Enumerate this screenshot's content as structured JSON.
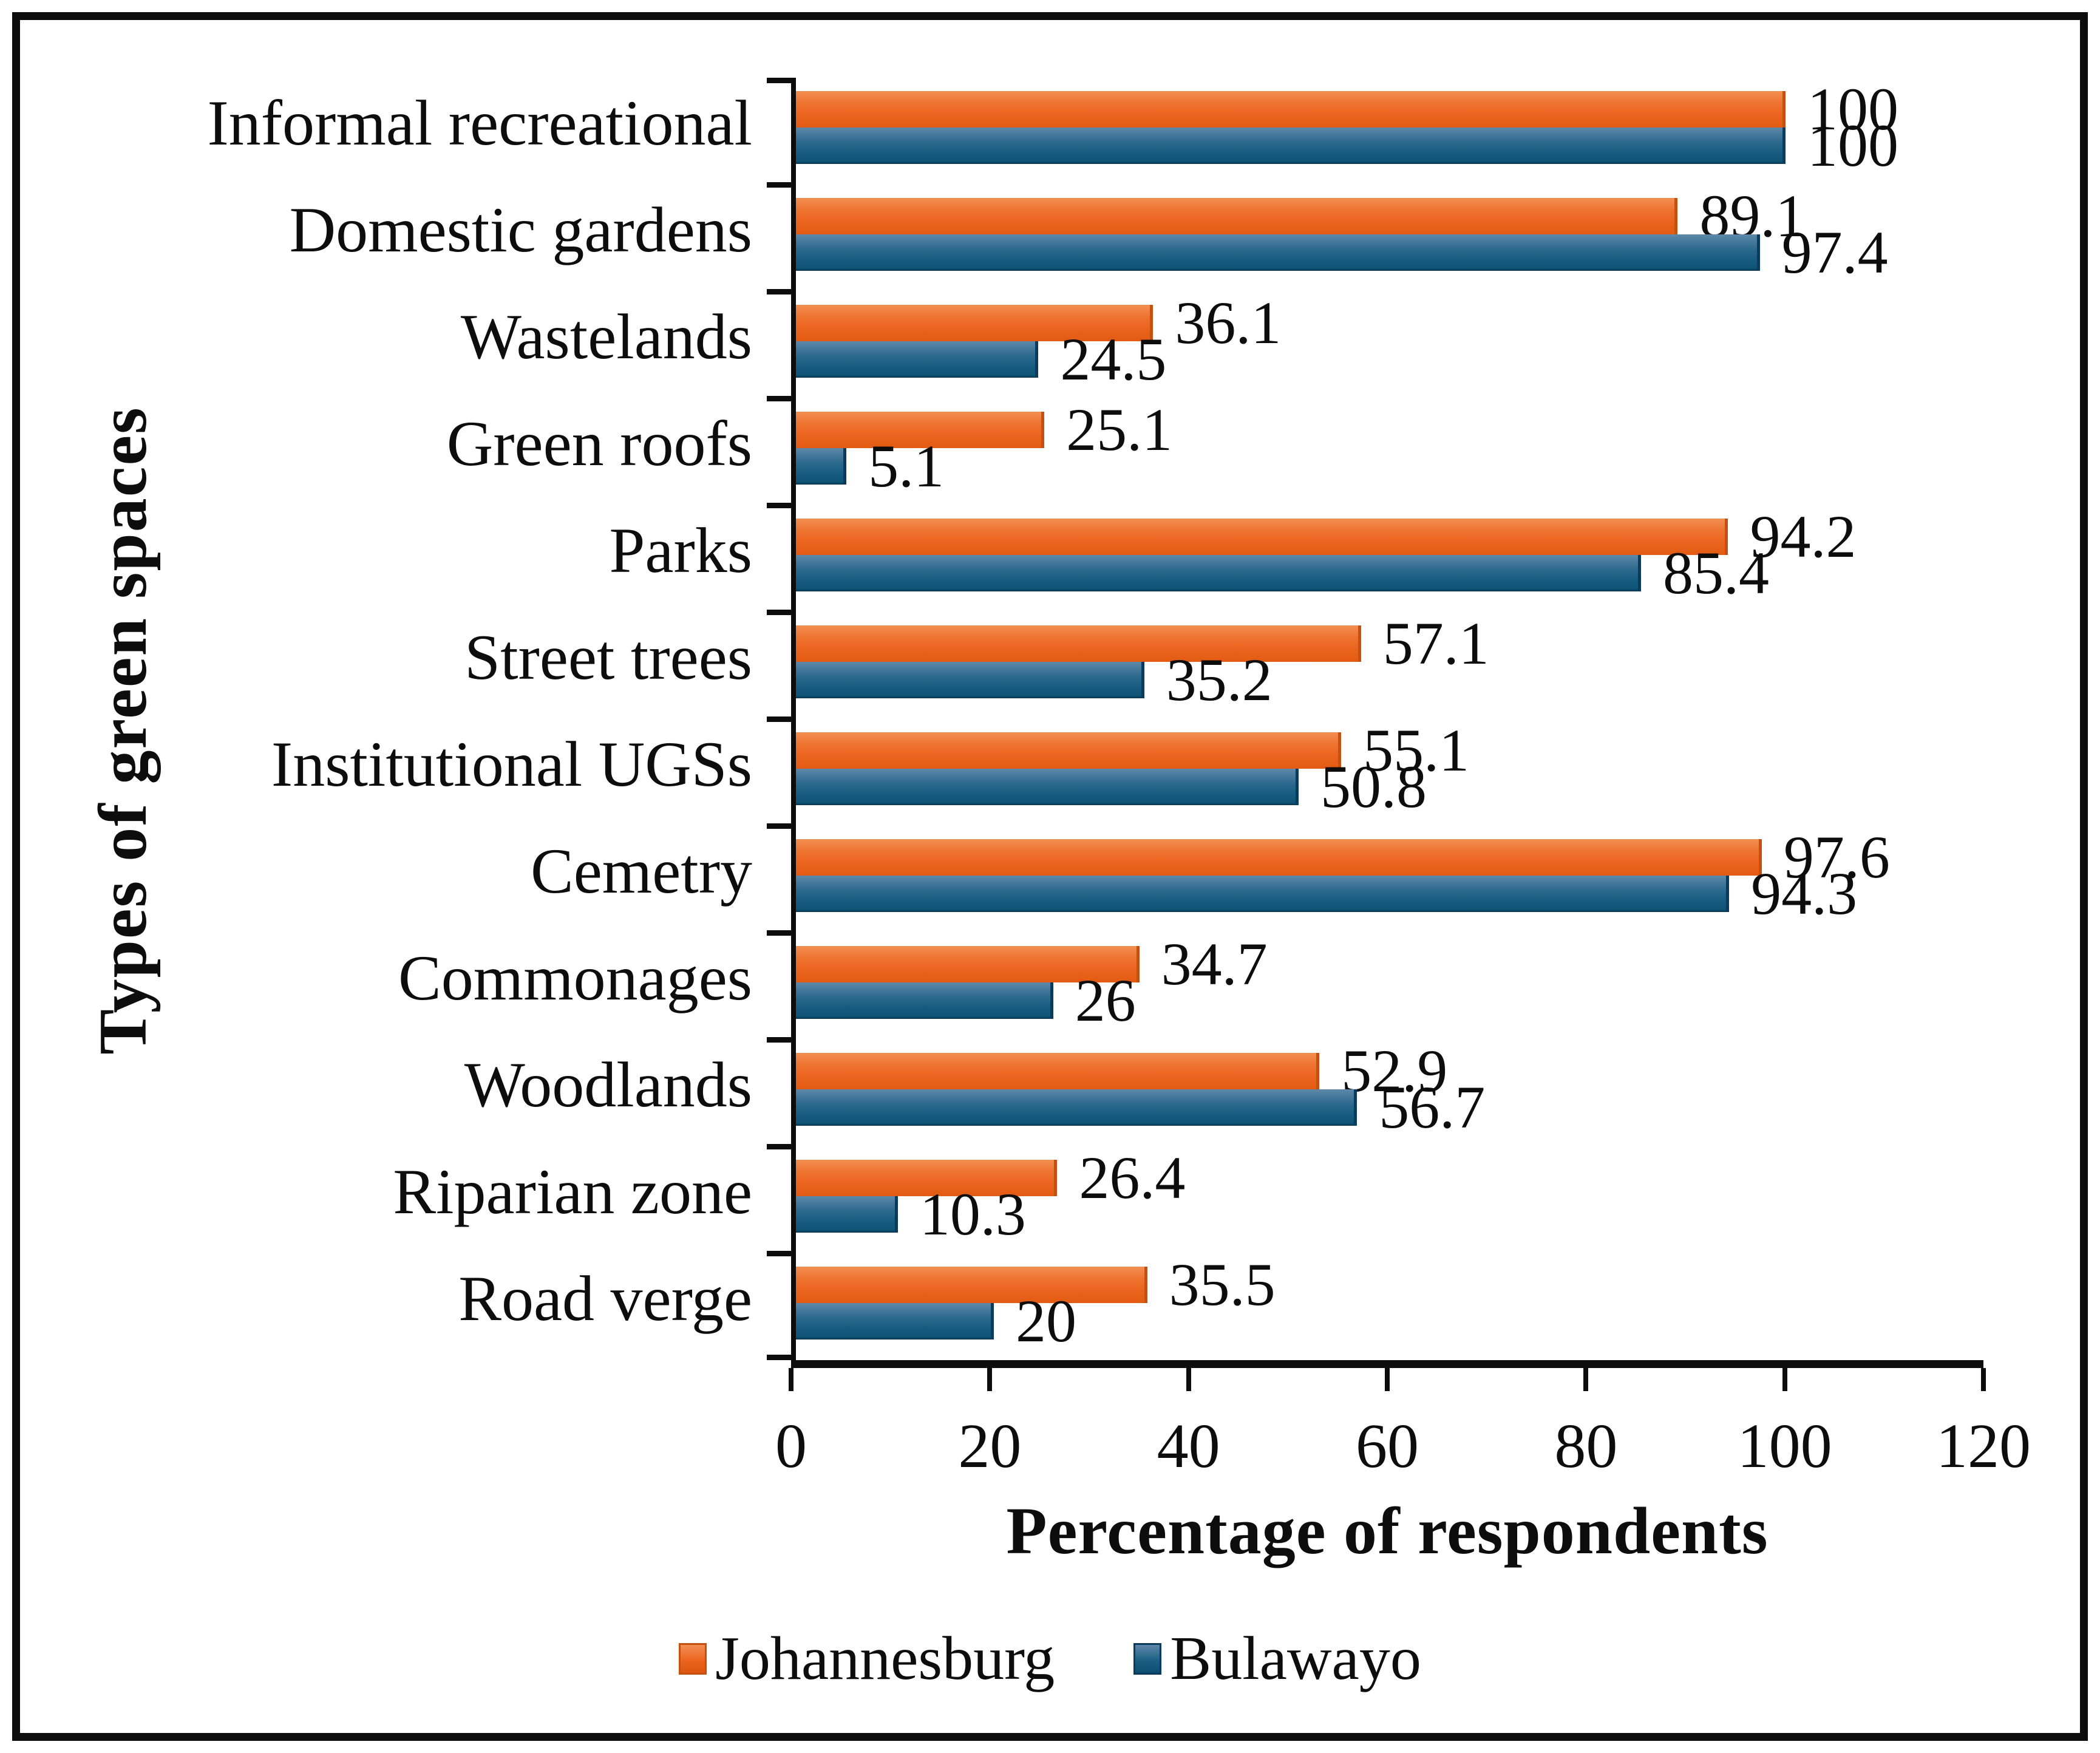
{
  "frame": {
    "border_color": "#0d0d0d",
    "background": "#ffffff"
  },
  "chart_data": {
    "type": "bar",
    "orientation": "horizontal",
    "title": "",
    "xlabel": "Percentage of respondents",
    "ylabel": "Types of green spaces",
    "xlim": [
      0,
      120
    ],
    "xticks": [
      0,
      20,
      40,
      60,
      80,
      100,
      120
    ],
    "grid": false,
    "legend_position": "bottom",
    "value_labels": true,
    "categories": [
      "Informal recreational",
      "Domestic gardens",
      "Wastelands",
      "Green roofs",
      "Parks",
      "Street trees",
      "Institutional UGSs",
      "Cemetry",
      "Commonages",
      "Woodlands",
      "Riparian zone",
      "Road verge"
    ],
    "series": [
      {
        "name": "Johannesburg",
        "color": "#EA6420",
        "values": [
          100,
          89.1,
          36.1,
          25.1,
          94.2,
          57.1,
          55.1,
          97.6,
          34.7,
          52.9,
          26.4,
          35.5
        ]
      },
      {
        "name": "Bulawayo",
        "color": "#175C81",
        "values": [
          100,
          97.4,
          24.5,
          5.1,
          85.4,
          35.2,
          50.8,
          94.3,
          26,
          56.7,
          10.3,
          20
        ]
      }
    ]
  }
}
